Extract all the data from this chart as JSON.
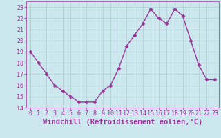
{
  "x": [
    0,
    1,
    2,
    3,
    4,
    5,
    6,
    7,
    8,
    9,
    10,
    11,
    12,
    13,
    14,
    15,
    16,
    17,
    18,
    19,
    20,
    21,
    22,
    23
  ],
  "y": [
    19,
    18,
    17,
    16,
    15.5,
    15,
    14.5,
    14.5,
    14.5,
    15.5,
    16,
    17.5,
    19.5,
    20.5,
    21.5,
    22.8,
    22,
    21.5,
    22.8,
    22.2,
    20,
    17.8,
    16.5,
    16.5
  ],
  "line_color": "#993399",
  "marker": "D",
  "marker_size": 2.5,
  "bg_color": "#cce8ee",
  "grid_color": "#aacccc",
  "xlabel": "Windchill (Refroidissement éolien,°C)",
  "ylim": [
    14,
    23.5
  ],
  "xlim": [
    -0.5,
    23.5
  ],
  "yticks": [
    14,
    15,
    16,
    17,
    18,
    19,
    20,
    21,
    22,
    23
  ],
  "xticks": [
    0,
    1,
    2,
    3,
    4,
    5,
    6,
    7,
    8,
    9,
    10,
    11,
    12,
    13,
    14,
    15,
    16,
    17,
    18,
    19,
    20,
    21,
    22,
    23
  ],
  "tick_color": "#993399",
  "label_color": "#993399",
  "tick_fontsize": 6,
  "xlabel_fontsize": 7.5,
  "linewidth": 1.0
}
